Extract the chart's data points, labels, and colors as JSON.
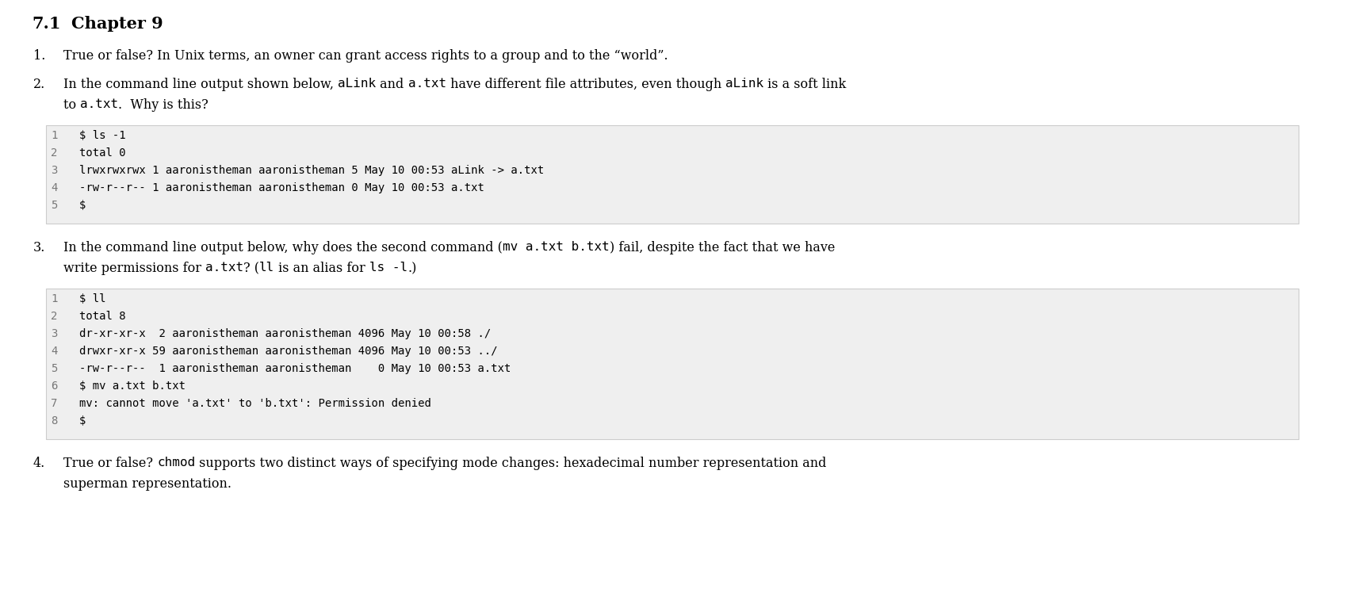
{
  "bg_color": "#ffffff",
  "code_bg_color": "#efefef",
  "title_num": "7.1",
  "title_text": "Chapter 9",
  "body_items": [
    {
      "num": "1.",
      "lines": [
        [
          {
            "t": "True or false? In Unix terms, an owner can grant access rights to a group and to the “world”.",
            "m": false
          }
        ]
      ]
    },
    {
      "num": "2.",
      "lines": [
        [
          {
            "t": "In the command line output shown below, ",
            "m": false
          },
          {
            "t": "aLink",
            "m": true
          },
          {
            "t": " and ",
            "m": false
          },
          {
            "t": "a.txt",
            "m": true
          },
          {
            "t": " have different file attributes, even though ",
            "m": false
          },
          {
            "t": "aLink",
            "m": true
          },
          {
            "t": " is a soft link",
            "m": false
          }
        ],
        [
          {
            "t": "to ",
            "m": false
          },
          {
            "t": "a.txt",
            "m": true
          },
          {
            "t": ".  Why is this?",
            "m": false
          }
        ]
      ]
    },
    {
      "num": "3.",
      "lines": [
        [
          {
            "t": "In the command line output below, why does the second command (",
            "m": false
          },
          {
            "t": "mv a.txt b.txt",
            "m": true
          },
          {
            "t": ") fail, despite the fact that we have",
            "m": false
          }
        ],
        [
          {
            "t": "write permissions for ",
            "m": false
          },
          {
            "t": "a.txt",
            "m": true
          },
          {
            "t": "? (",
            "m": false
          },
          {
            "t": "ll",
            "m": true
          },
          {
            "t": " is an alias for ",
            "m": false
          },
          {
            "t": "ls -l",
            "m": true
          },
          {
            "t": ".)",
            "m": false
          }
        ]
      ]
    },
    {
      "num": "4.",
      "lines": [
        [
          {
            "t": "True or false? ",
            "m": false
          },
          {
            "t": "chmod",
            "m": true
          },
          {
            "t": " supports two distinct ways of specifying mode changes: hexadecimal number representation and",
            "m": false
          }
        ],
        [
          {
            "t": "superman representation.",
            "m": false
          }
        ]
      ]
    }
  ],
  "code_block1": [
    [
      "1",
      "$ ls -1"
    ],
    [
      "2",
      "total 0"
    ],
    [
      "3",
      "lrwxrwxrwx 1 aaronistheman aaronistheman 5 May 10 00:53 aLink -> a.txt"
    ],
    [
      "4",
      "-rw-r--r-- 1 aaronistheman aaronistheman 0 May 10 00:53 a.txt"
    ],
    [
      "5",
      "$"
    ]
  ],
  "code_block2": [
    [
      "1",
      "$ ll"
    ],
    [
      "2",
      "total 8"
    ],
    [
      "3",
      "dr-xr-xr-x  2 aaronistheman aaronistheman 4096 May 10 00:58 ./"
    ],
    [
      "4",
      "drwxr-xr-x 59 aaronistheman aaronistheman 4096 May 10 00:53 ../"
    ],
    [
      "5",
      "-rw-r--r--  1 aaronistheman aaronistheman    0 May 10 00:53 a.txt"
    ],
    [
      "6",
      "$ mv a.txt b.txt"
    ],
    [
      "7",
      "mv: cannot move 'a.txt' to 'b.txt': Permission denied"
    ],
    [
      "8",
      "$"
    ]
  ]
}
